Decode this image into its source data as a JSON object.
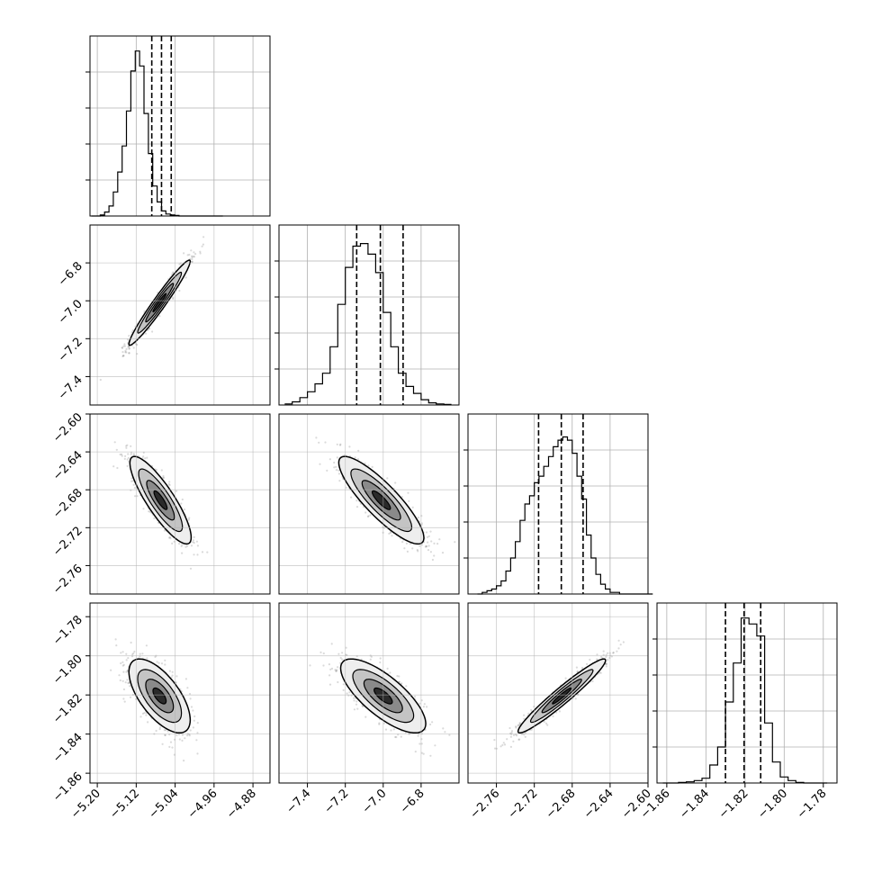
{
  "chart_data": {
    "type": "corner",
    "title": "",
    "grid": true,
    "parameters": [
      {
        "range": [
          -5.215,
          -4.845
        ],
        "ticks": [
          -5.2,
          -5.12,
          -5.04,
          -4.96,
          -4.88
        ],
        "tick_labels": [
          "−5.20",
          "−5.12",
          "−5.04",
          "−4.96",
          "−4.88"
        ],
        "quantiles": [
          -5.088,
          -5.068,
          -5.048
        ],
        "hist": {
          "bin_edges": [
            -5.212,
            -5.203,
            -5.194,
            -5.185,
            -5.176,
            -5.167,
            -5.158,
            -5.149,
            -5.14,
            -5.131,
            -5.122,
            -5.113,
            -5.104,
            -5.095,
            -5.086,
            -5.077,
            -5.068,
            -5.059,
            -5.05,
            -5.041,
            -5.032,
            -5.023,
            -5.014,
            -5.005,
            -4.996,
            -4.987,
            -4.978,
            -4.969,
            -4.96,
            -4.951,
            -4.942
          ],
          "counts": [
            0,
            0,
            2,
            8,
            20,
            48,
            88,
            140,
            210,
            290,
            330,
            300,
            205,
            125,
            60,
            28,
            10,
            4,
            2,
            1,
            0,
            0,
            0,
            0,
            0,
            0,
            0,
            0,
            0,
            0
          ],
          "ylim": [
            0,
            360
          ]
        }
      },
      {
        "range": [
          -7.55,
          -6.6
        ],
        "ticks": [
          -7.4,
          -7.2,
          -7.0,
          -6.8
        ],
        "tick_labels": [
          "−7.4",
          "−7.2",
          "−7.0",
          "−6.8"
        ],
        "quantiles": [
          -7.14,
          -7.015,
          -6.895
        ],
        "hist": {
          "bin_edges": [
            -7.52,
            -7.48,
            -7.44,
            -7.4,
            -7.36,
            -7.32,
            -7.28,
            -7.24,
            -7.2,
            -7.16,
            -7.12,
            -7.08,
            -7.04,
            -7.0,
            -6.96,
            -6.92,
            -6.88,
            -6.84,
            -6.8,
            -6.76,
            -6.72,
            -6.68,
            -6.64
          ],
          "counts": [
            2,
            6,
            14,
            25,
            40,
            60,
            110,
            190,
            260,
            300,
            305,
            285,
            250,
            175,
            110,
            60,
            35,
            22,
            10,
            4,
            2,
            1
          ],
          "ylim": [
            0,
            340
          ]
        }
      },
      {
        "range": [
          -2.79,
          -2.6
        ],
        "ticks": [
          -2.76,
          -2.72,
          -2.68,
          -2.64,
          -2.6
        ],
        "tick_labels": [
          "−2.76",
          "−2.72",
          "−2.68",
          "−2.64",
          "−2.60"
        ],
        "quantiles": [
          -2.7155,
          -2.6915,
          -2.6685
        ],
        "hist": {
          "bin_edges": [
            -2.78,
            -2.775,
            -2.77,
            -2.765,
            -2.76,
            -2.755,
            -2.75,
            -2.745,
            -2.74,
            -2.735,
            -2.73,
            -2.725,
            -2.72,
            -2.715,
            -2.71,
            -2.705,
            -2.7,
            -2.695,
            -2.69,
            -2.685,
            -2.68,
            -2.675,
            -2.67,
            -2.665,
            -2.66,
            -2.655,
            -2.65,
            -2.645,
            -2.64,
            -2.635,
            -2.63,
            -2.625,
            -2.62,
            -2.615,
            -2.61,
            -2.605,
            -2.6,
            -2.595
          ],
          "counts": [
            0,
            1,
            2,
            3,
            5,
            8,
            14,
            22,
            32,
            45,
            55,
            60,
            68,
            72,
            78,
            84,
            90,
            94,
            96,
            94,
            86,
            72,
            58,
            36,
            22,
            12,
            6,
            3,
            1,
            1,
            0,
            0,
            0,
            0,
            0,
            0,
            0
          ],
          "ylim": [
            0,
            110
          ]
        }
      },
      {
        "range": [
          -1.865,
          -1.773
        ],
        "ticks": [
          -1.86,
          -1.84,
          -1.82,
          -1.8,
          -1.78
        ],
        "tick_labels": [
          "−1.86",
          "−1.84",
          "−1.82",
          "−1.80",
          "−1.78"
        ],
        "quantiles": [
          -1.83,
          -1.8205,
          -1.812
        ],
        "hist": {
          "bin_edges": [
            -1.862,
            -1.858,
            -1.854,
            -1.85,
            -1.846,
            -1.842,
            -1.838,
            -1.834,
            -1.83,
            -1.826,
            -1.822,
            -1.818,
            -1.814,
            -1.81,
            -1.806,
            -1.802,
            -1.798,
            -1.794,
            -1.79,
            -1.786,
            -1.782,
            -1.778
          ],
          "counts": [
            0,
            0,
            1,
            2,
            4,
            8,
            30,
            60,
            135,
            200,
            275,
            265,
            245,
            100,
            35,
            10,
            4,
            1,
            0,
            0,
            0
          ],
          "ylim": [
            0,
            300
          ]
        }
      }
    ],
    "joint": [
      {
        "x": 0,
        "y": 1,
        "mean": [
          -5.072,
          -7.01
        ],
        "std": [
          0.03,
          0.107
        ],
        "corr": 0.97
      },
      {
        "x": 0,
        "y": 2,
        "mean": [
          -5.07,
          -2.691
        ],
        "std": [
          0.03,
          0.022
        ],
        "corr": -0.85
      },
      {
        "x": 1,
        "y": 2,
        "mean": [
          -7.01,
          -2.691
        ],
        "std": [
          0.107,
          0.022
        ],
        "corr": -0.86
      },
      {
        "x": 0,
        "y": 3,
        "mean": [
          -5.072,
          -1.8205
        ],
        "std": [
          0.03,
          0.009
        ],
        "corr": -0.65
      },
      {
        "x": 1,
        "y": 3,
        "mean": [
          -7.0,
          -1.8205
        ],
        "std": [
          0.107,
          0.009
        ],
        "corr": -0.75
      },
      {
        "x": 2,
        "y": 3,
        "mean": [
          -2.691,
          -1.8205
        ],
        "std": [
          0.022,
          0.009
        ],
        "corr": 0.96
      }
    ]
  }
}
